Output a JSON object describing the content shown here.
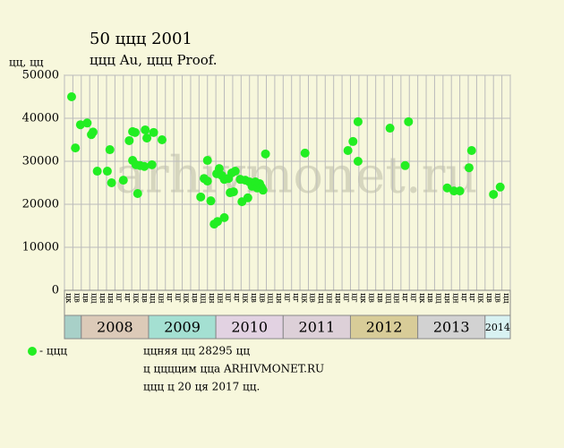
{
  "chart_data": {
    "type": "scatter",
    "title": "50 ццц 2001",
    "subtitle": "ццц Au, ццц Proof.",
    "y_label": "цц, цц",
    "watermark": "arhivmonet.ru",
    "color": "#22ee22",
    "ylim": [
      0,
      50000
    ],
    "yticks": [
      0,
      10000,
      20000,
      30000,
      40000,
      50000
    ],
    "grid": true,
    "xlim": [
      0,
      53
    ],
    "categories": [
      "цк",
      "цв",
      "цв",
      "цц",
      "цн",
      "цн",
      "цг",
      "цг",
      "цк",
      "цв",
      "цц",
      "цн",
      "цг",
      "цг",
      "цк",
      "цв",
      "цц",
      "цн",
      "цн",
      "цг",
      "цг",
      "цк",
      "цв",
      "цв",
      "цц",
      "цн",
      "цг",
      "цг",
      "цк",
      "цв",
      "цц",
      "цн",
      "цн",
      "цг",
      "цг",
      "цк",
      "цв",
      "цв",
      "цц",
      "цн",
      "цг",
      "цг",
      "цк",
      "цв",
      "цц",
      "цн",
      "цн",
      "цг",
      "цг",
      "цк",
      "цв",
      "цв",
      "цц"
    ],
    "years": [
      {
        "label": null,
        "columns": 2,
        "color": "#a8d0c8"
      },
      {
        "label": "2008",
        "columns": 8,
        "color": "#dccab8"
      },
      {
        "label": "2009",
        "columns": 8,
        "color": "#a4e0d2"
      },
      {
        "label": "2010",
        "columns": 8,
        "color": "#e2d2e2"
      },
      {
        "label": "2011",
        "columns": 8,
        "color": "#ddd0d8"
      },
      {
        "label": "2012",
        "columns": 8,
        "color": "#d8cc98"
      },
      {
        "label": "2013",
        "columns": 8,
        "color": "#d2d2d2"
      },
      {
        "label": "2014",
        "columns": 3,
        "color": "#d8f2f2"
      }
    ],
    "x": [
      0.85,
      1.3,
      1.9,
      2.7,
      3.2,
      3.4,
      3.9,
      5.1,
      5.4,
      5.6,
      7.0,
      7.7,
      8.1,
      8.4,
      8.1,
      8.5,
      8.7,
      9.0,
      9.5,
      9.6,
      9.8,
      10.4,
      10.6,
      11.6,
      16.2,
      16.6,
      17.0,
      17.0,
      17.4,
      17.8,
      18.1,
      18.2,
      18.4,
      18.7,
      19.0,
      19.0,
      19.5,
      19.7,
      19.9,
      20.1,
      20.3,
      20.9,
      21.1,
      21.5,
      21.8,
      22.0,
      22.3,
      22.7,
      22.9,
      23.2,
      23.4,
      23.6,
      23.9,
      28.6,
      33.7,
      34.3,
      34.9,
      34.9,
      38.7,
      40.5,
      40.9,
      45.5,
      46.3,
      47.0,
      48.1,
      48.4,
      51.0,
      51.8
    ],
    "values": [
      45000,
      33100,
      38500,
      38900,
      36200,
      36800,
      27700,
      27700,
      32700,
      25000,
      25600,
      34800,
      36900,
      36700,
      30200,
      29200,
      22500,
      29000,
      28800,
      37300,
      35400,
      29200,
      36700,
      35000,
      21700,
      26000,
      30200,
      25400,
      20800,
      15400,
      27100,
      16000,
      28300,
      26700,
      25800,
      16900,
      26000,
      22700,
      27300,
      22900,
      27700,
      25800,
      20600,
      25600,
      21500,
      25200,
      24200,
      25200,
      23800,
      24800,
      24000,
      23300,
      31700,
      31900,
      32500,
      34600,
      39200,
      30000,
      37700,
      29000,
      39200,
      23800,
      23100,
      23100,
      28500,
      32500,
      22300,
      24000
    ],
    "legend": "- ццц",
    "notes": [
      "ццняя цц 28295 цц",
      "ц ццццим цца ARHIVMONET.RU",
      "ццц ц 20 ця 2017 цц."
    ]
  }
}
